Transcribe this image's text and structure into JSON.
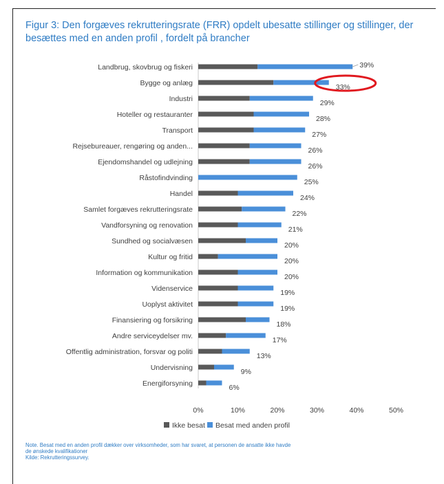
{
  "chart_data": {
    "type": "bar",
    "stacked": true,
    "orientation": "horizontal",
    "title": "Figur 3: Den forgæves rekrutteringsrate (FRR) opdelt ubesatte stillinger og stillinger, der besættes med en anden profil , fordelt på brancher",
    "categories": [
      "Landbrug, skovbrug og fiskeri",
      "Bygge og anlæg",
      "Industri",
      "Hoteller og restauranter",
      "Transport",
      "Rejsebureauer, rengøring og anden...",
      "Ejendomshandel og udlejning",
      "Råstofindvinding",
      "Handel",
      "Samlet forgæves rekrutteringsrate",
      "Vandforsyning og renovation",
      "Sundhed og socialvæsen",
      "Kultur og fritid",
      "Information og kommunikation",
      "Videnservice",
      "Uoplyst aktivitet",
      "Finansiering og forsikring",
      "Andre serviceydelser  mv.",
      "Offentlig administration, forsvar og politi",
      "Undervisning",
      "Energiforsyning"
    ],
    "series": [
      {
        "name": "Ikke besat",
        "color": "#595959",
        "values": [
          15,
          19,
          13,
          14,
          14,
          13,
          13,
          0,
          10,
          11,
          10,
          12,
          5,
          10,
          10,
          10,
          12,
          7,
          6,
          4,
          2
        ]
      },
      {
        "name": "Besat med anden profil",
        "color": "#4a8fd9",
        "values": [
          24,
          14,
          16,
          14,
          13,
          13,
          13,
          25,
          14,
          11,
          11,
          8,
          15,
          10,
          9,
          9,
          6,
          10,
          7,
          5,
          4
        ]
      }
    ],
    "data_labels": [
      "39%",
      "33%",
      "29%",
      "28%",
      "27%",
      "26%",
      "26%",
      "25%",
      "24%",
      "22%",
      "21%",
      "20%",
      "20%",
      "20%",
      "19%",
      "19%",
      "18%",
      "17%",
      "13%",
      "9%",
      "6%"
    ],
    "xlim": [
      0,
      50
    ],
    "x_ticks": [
      "0%",
      "10%",
      "20%",
      "30%",
      "40%",
      "50%"
    ],
    "grid": false,
    "legend_position": "bottom",
    "annotation": {
      "type": "red-ellipse",
      "category": "Bygge og anlæg",
      "label": "33%"
    }
  },
  "note": {
    "line1": "Note. Besat med en anden profil dækker over virksomheder, som har svaret, at personen de ansatte ikke havde",
    "line2": "de ønskede kvalifikationer",
    "line3": "Kilde: Rekrutteringssurvey."
  },
  "colors": {
    "title": "#2f7cc4",
    "highlight": "#e0191f"
  }
}
